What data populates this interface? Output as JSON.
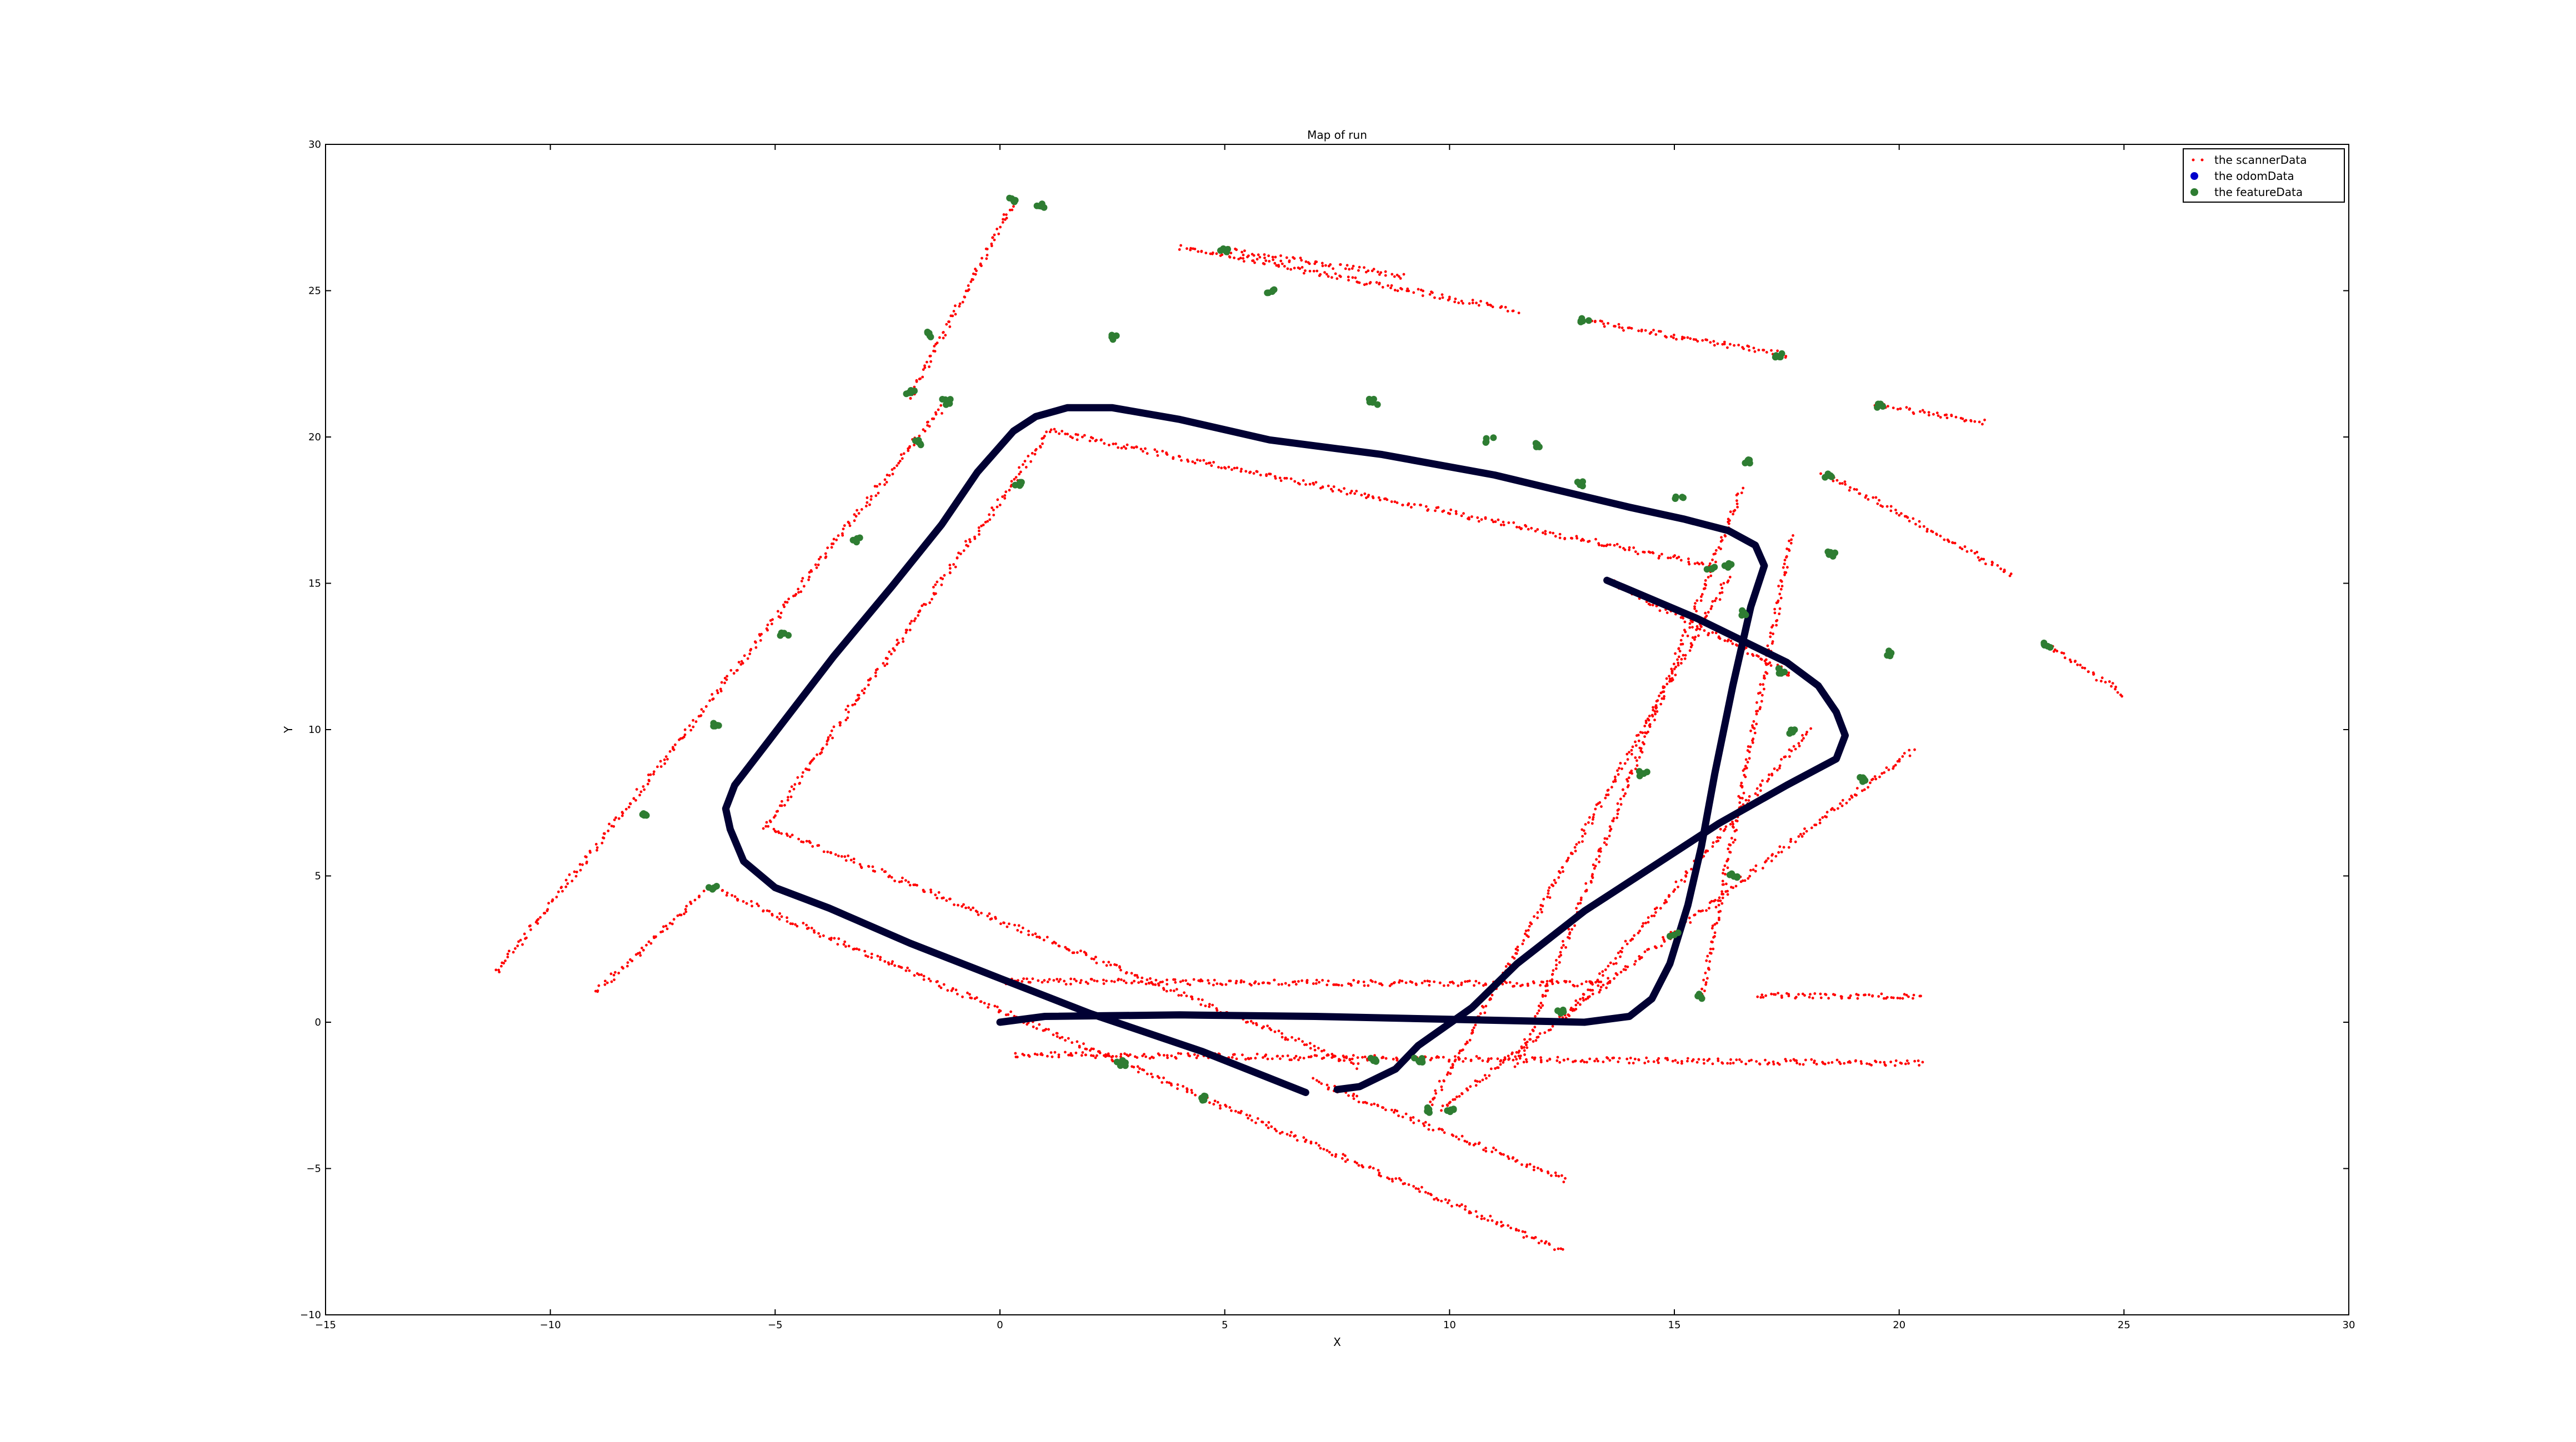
{
  "chart_data": {
    "type": "scatter",
    "title": "Map of run",
    "xlabel": "X",
    "ylabel": "Y",
    "xlim": [
      -15,
      30
    ],
    "ylim": [
      -10,
      30
    ],
    "xticks": [
      -15,
      -10,
      -5,
      0,
      5,
      10,
      15,
      20,
      25,
      30
    ],
    "yticks": [
      -10,
      -5,
      0,
      5,
      10,
      15,
      20,
      25,
      30
    ],
    "xtick_labels": [
      "−15",
      "−10",
      "−5",
      "0",
      "5",
      "10",
      "15",
      "20",
      "25",
      "30"
    ],
    "ytick_labels": [
      "−10",
      "−5",
      "0",
      "5",
      "10",
      "15",
      "20",
      "25",
      "30"
    ],
    "grid": false,
    "legend_position": "top-right",
    "colors": {
      "scanner": "#ff0000",
      "odom": "#000033",
      "feature": "#2e7d32"
    },
    "series": [
      {
        "name": "the scannerData",
        "marker": "small-dot",
        "segments": [
          [
            [
              -5.2,
              6.7
            ],
            [
              1.1,
              20.2
            ]
          ],
          [
            [
              1.1,
              20.2
            ],
            [
              15.8,
              15.6
            ]
          ],
          [
            [
              -5.2,
              6.7
            ],
            [
              8.0,
              -1.5
            ]
          ],
          [
            [
              -1.2,
              21.2
            ],
            [
              -11.2,
              1.7
            ]
          ],
          [
            [
              -6.4,
              4.6
            ],
            [
              12.5,
              -7.8
            ]
          ],
          [
            [
              -2.0,
              21.3
            ],
            [
              0.3,
              28.1
            ]
          ],
          [
            [
              0.1,
              1.4
            ],
            [
              13.5,
              1.3
            ]
          ],
          [
            [
              0.3,
              -1.1
            ],
            [
              20.5,
              -1.4
            ]
          ],
          [
            [
              13.5,
              15.1
            ],
            [
              17.6,
              11.9
            ]
          ],
          [
            [
              9.5,
              -3.0
            ],
            [
              16.2,
              15.2
            ]
          ],
          [
            [
              9.8,
              -3.0
            ],
            [
              20.3,
              9.3
            ]
          ],
          [
            [
              12.5,
              0.0
            ],
            [
              18.0,
              10.0
            ]
          ],
          [
            [
              11.5,
              -1.5
            ],
            [
              16.5,
              18.2
            ]
          ],
          [
            [
              15.6,
              0.8
            ],
            [
              17.6,
              16.6
            ]
          ],
          [
            [
              16.8,
              0.9
            ],
            [
              20.5,
              0.9
            ]
          ],
          [
            [
              4.0,
              26.5
            ],
            [
              11.5,
              24.3
            ]
          ],
          [
            [
              12.9,
              24.0
            ],
            [
              17.5,
              22.8
            ]
          ],
          [
            [
              19.5,
              21.1
            ],
            [
              21.9,
              20.5
            ]
          ],
          [
            [
              18.3,
              18.8
            ],
            [
              22.5,
              15.3
            ]
          ],
          [
            [
              23.3,
              12.9
            ],
            [
              25.0,
              11.2
            ]
          ],
          [
            [
              5.0,
              26.4
            ],
            [
              9.0,
              25.5
            ]
          ],
          [
            [
              7.0,
              -2.0
            ],
            [
              12.6,
              -5.4
            ]
          ],
          [
            [
              -9.0,
              1.0
            ],
            [
              -6.6,
              4.4
            ]
          ]
        ]
      },
      {
        "name": "the odomData",
        "marker": "dot",
        "path": [
          [
            6.8,
            -2.4
          ],
          [
            4.5,
            -1.0
          ],
          [
            2.0,
            0.3
          ],
          [
            0.0,
            1.5
          ],
          [
            -2.0,
            2.7
          ],
          [
            -3.8,
            3.9
          ],
          [
            -5.0,
            4.6
          ],
          [
            -5.7,
            5.5
          ],
          [
            -6.0,
            6.6
          ],
          [
            -6.1,
            7.3
          ],
          [
            -5.9,
            8.1
          ],
          [
            -4.8,
            10.3
          ],
          [
            -3.7,
            12.5
          ],
          [
            -2.4,
            14.9
          ],
          [
            -1.3,
            17.0
          ],
          [
            -0.5,
            18.8
          ],
          [
            0.3,
            20.2
          ],
          [
            0.8,
            20.7
          ],
          [
            1.5,
            21.0
          ],
          [
            2.5,
            21.0
          ],
          [
            4.0,
            20.6
          ],
          [
            6.0,
            19.9
          ],
          [
            8.5,
            19.4
          ],
          [
            11.0,
            18.7
          ],
          [
            14.0,
            17.6
          ],
          [
            15.2,
            17.2
          ],
          [
            16.2,
            16.8
          ],
          [
            16.8,
            16.3
          ],
          [
            17.0,
            15.6
          ],
          [
            16.7,
            14.2
          ],
          [
            16.3,
            11.5
          ],
          [
            15.9,
            8.5
          ],
          [
            15.6,
            6.0
          ],
          [
            15.3,
            4.0
          ],
          [
            14.9,
            2.0
          ],
          [
            14.5,
            0.8
          ],
          [
            14.0,
            0.2
          ],
          [
            13.0,
            0.0
          ],
          [
            10.0,
            0.1
          ],
          [
            7.0,
            0.2
          ],
          [
            4.0,
            0.25
          ],
          [
            1.0,
            0.2
          ],
          [
            0.0,
            0.0
          ]
        ]
      },
      {
        "name": "the odomData",
        "marker": "dot",
        "path": [
          [
            13.5,
            15.1
          ],
          [
            15.5,
            13.8
          ],
          [
            17.5,
            12.3
          ],
          [
            18.2,
            11.5
          ],
          [
            18.6,
            10.6
          ],
          [
            18.8,
            9.8
          ],
          [
            18.6,
            9.0
          ],
          [
            17.5,
            8.1
          ],
          [
            16.0,
            6.8
          ],
          [
            14.5,
            5.3
          ],
          [
            13.0,
            3.8
          ],
          [
            11.5,
            2.0
          ],
          [
            10.5,
            0.5
          ],
          [
            9.3,
            -0.8
          ],
          [
            8.8,
            -1.6
          ],
          [
            8.0,
            -2.2
          ],
          [
            7.5,
            -2.3
          ]
        ]
      },
      {
        "name": "the featureData",
        "marker": "dot",
        "points": [
          [
            0.3,
            28.1
          ],
          [
            0.9,
            27.9
          ],
          [
            2.5,
            23.4
          ],
          [
            5.0,
            26.4
          ],
          [
            8.3,
            21.2
          ],
          [
            13.0,
            24.0
          ],
          [
            17.3,
            22.8
          ],
          [
            19.6,
            21.1
          ],
          [
            -1.2,
            21.2
          ],
          [
            -2.0,
            21.5
          ],
          [
            -1.6,
            23.5
          ],
          [
            -1.8,
            19.8
          ],
          [
            -3.2,
            16.5
          ],
          [
            -4.8,
            13.3
          ],
          [
            -6.3,
            10.2
          ],
          [
            -7.9,
            7.1
          ],
          [
            -6.4,
            4.6
          ],
          [
            0.4,
            18.4
          ],
          [
            10.9,
            19.9
          ],
          [
            12.0,
            19.7
          ],
          [
            15.8,
            15.5
          ],
          [
            16.2,
            15.6
          ],
          [
            18.4,
            18.7
          ],
          [
            17.4,
            12.0
          ],
          [
            19.8,
            12.6
          ],
          [
            23.3,
            12.9
          ],
          [
            17.6,
            9.9
          ],
          [
            19.2,
            8.3
          ],
          [
            15.1,
            17.9
          ],
          [
            16.6,
            19.2
          ],
          [
            12.9,
            18.4
          ],
          [
            15.6,
            0.9
          ],
          [
            15.0,
            3.0
          ],
          [
            16.3,
            5.0
          ],
          [
            12.5,
            0.4
          ],
          [
            9.3,
            -1.3
          ],
          [
            9.5,
            -3.0
          ],
          [
            10.0,
            -3.0
          ],
          [
            2.7,
            -1.4
          ],
          [
            4.5,
            -2.6
          ],
          [
            8.3,
            -1.3
          ],
          [
            6.0,
            25.0
          ],
          [
            16.5,
            14.0
          ],
          [
            18.5,
            16.0
          ],
          [
            14.3,
            8.5
          ]
        ]
      }
    ]
  }
}
